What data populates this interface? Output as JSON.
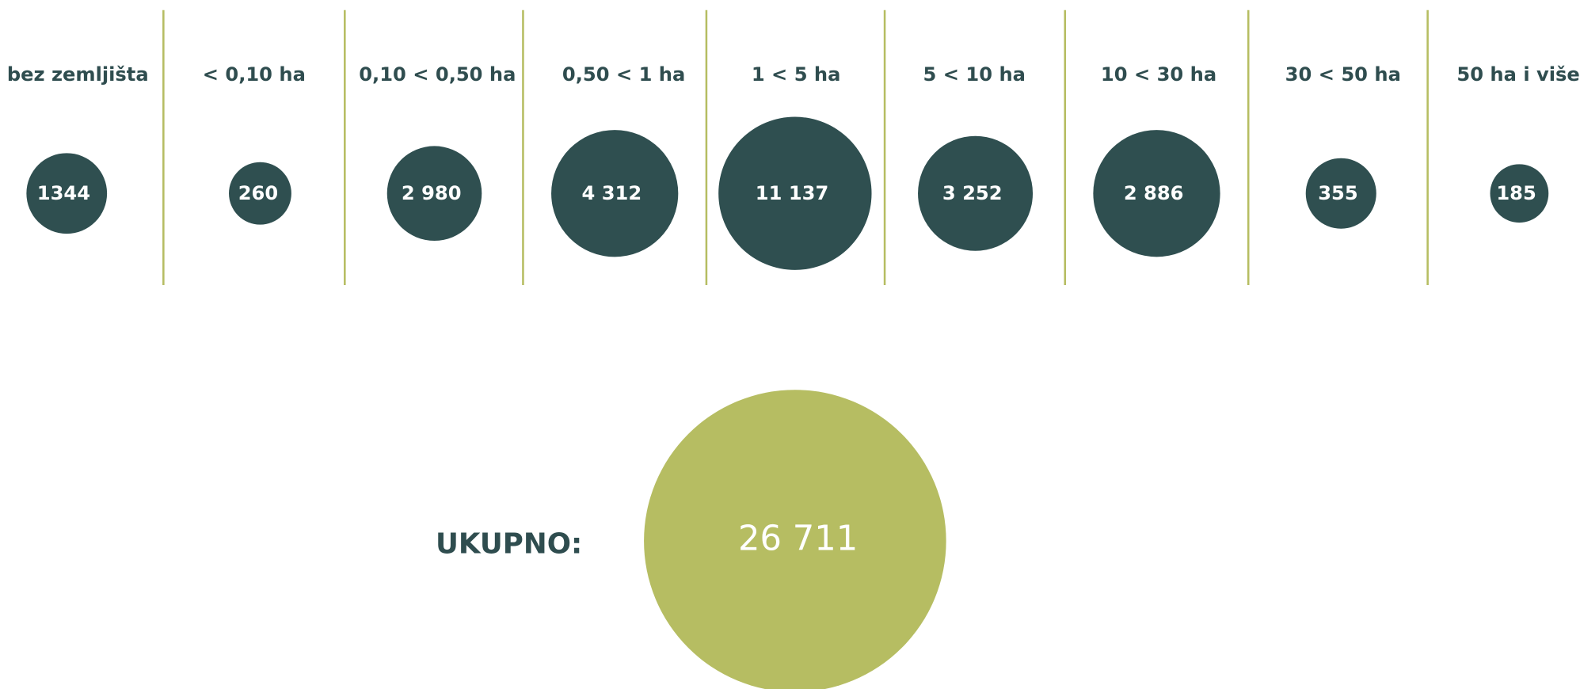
{
  "columns": [
    {
      "label": "bez zemljišta",
      "value": "1344"
    },
    {
      "label": "< 0,10 ha",
      "value": "260"
    },
    {
      "label": "0,10 < 0,50 ha",
      "value": "2 980"
    },
    {
      "label": "0,50 < 1 ha",
      "value": "4 312"
    },
    {
      "label": "1 < 5 ha",
      "value": "11 137"
    },
    {
      "label": "5 < 10 ha",
      "value": "3 252"
    },
    {
      "label": "10 < 30 ha",
      "value": "2 886"
    },
    {
      "label": "30 < 50 ha",
      "value": "355"
    },
    {
      "label": "50 ha i više",
      "value": "185"
    }
  ],
  "total": {
    "label": "UKUPNO:",
    "value": "26 711"
  }
}
